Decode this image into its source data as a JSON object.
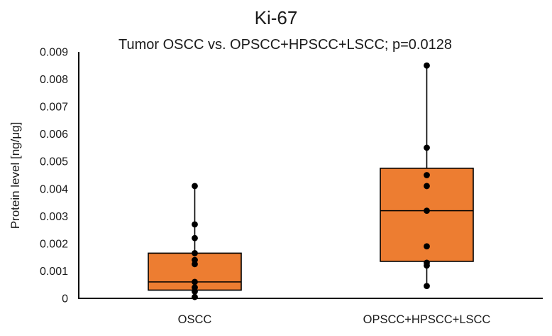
{
  "chart_data": {
    "type": "box",
    "title": "Ki-67",
    "subtitle": "Tumor OSCC vs. OPSCC+HPSCC+LSCC; p=0.0128",
    "ylabel": "Protein level [ng/μg]",
    "xlabel": "",
    "ylim": [
      0,
      0.009
    ],
    "ytick_step": 0.001,
    "ytick_labels": [
      "0",
      "0.001",
      "0.002",
      "0.003",
      "0.004",
      "0.005",
      "0.006",
      "0.007",
      "0.008",
      "0.009"
    ],
    "grid": false,
    "legend": false,
    "box_fill_color": "#ED7D31",
    "box_border_color": "#000000",
    "point_color": "#000000",
    "axis_color": "#000000",
    "groups": [
      {
        "label": "OSCC",
        "whisker_low": 5e-05,
        "q1": 0.0003,
        "median": 0.0006,
        "q3": 0.00165,
        "whisker_high": 0.0041,
        "points": [
          0.0041,
          0.0027,
          0.0022,
          0.00165,
          0.0014,
          0.00125,
          0.0006,
          0.0004,
          0.00025,
          5e-05
        ]
      },
      {
        "label": "OPSCC+HPSCC+LSCC",
        "whisker_low": 0.00045,
        "q1": 0.00135,
        "median": 0.0032,
        "q3": 0.00475,
        "whisker_high": 0.0085,
        "points": [
          0.0085,
          0.0055,
          0.0045,
          0.0041,
          0.0032,
          0.0019,
          0.0013,
          0.0012,
          0.00045
        ]
      }
    ]
  }
}
